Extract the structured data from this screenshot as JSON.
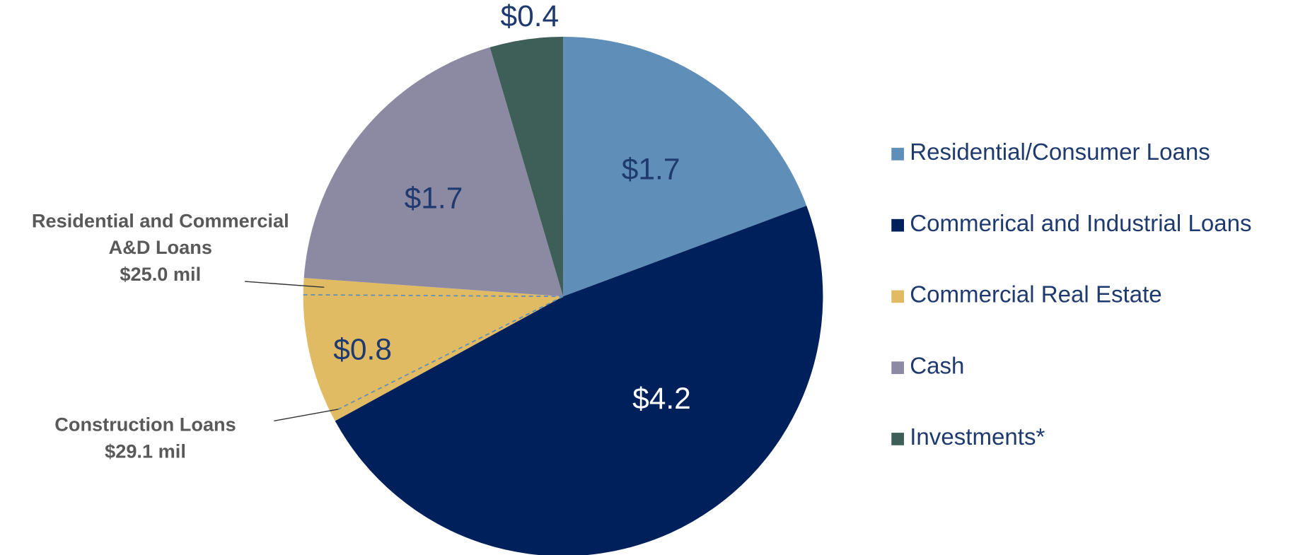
{
  "chart_data": {
    "type": "pie",
    "categories": [
      "Residential/Consumer Loans",
      "Commerical and Industrial Loans",
      "Commercial Real Estate",
      "Cash",
      "Investments*"
    ],
    "values": [
      1.7,
      4.2,
      0.8,
      1.7,
      0.4
    ],
    "value_labels": [
      "$1.7",
      "$4.2",
      "$0.8",
      "$1.7",
      "$0.4"
    ],
    "colors": [
      "#5f8fb8",
      "#00205b",
      "#e0bb64",
      "#8c89a3",
      "#3e5f57"
    ],
    "label_colors": [
      "#1f3a6e",
      "#ffffff",
      "#1f3a6e",
      "#1f3a6e",
      "#1f3a6e"
    ],
    "legend": "right",
    "annotations": [
      {
        "lines": [
          "Residential and Commercial",
          "A&D Loans",
          "$25.0 mil"
        ]
      },
      {
        "lines": [
          "Construction Loans",
          "$29.1 mil"
        ]
      }
    ]
  }
}
